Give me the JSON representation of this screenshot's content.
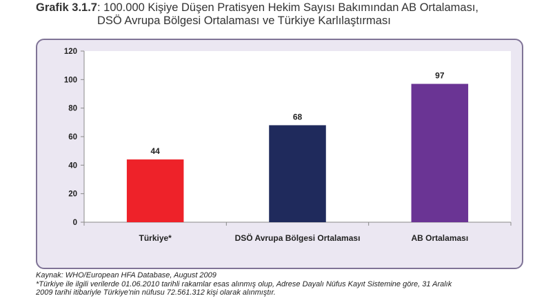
{
  "title": {
    "label": "Grafik 3.1.7",
    "line1": ": 100.000 Kişiye Düşen Pratisyen Hekim Sayısı Bakımından AB Ortalaması,",
    "line2": "DSÖ Avrupa Bölgesi Ortalaması ve Türkiye Karlılaştırması"
  },
  "chart_data": {
    "type": "bar",
    "categories": [
      "Türkiye*",
      "DSÖ Avrupa Bölgesi Ortalaması",
      "AB Ortalaması"
    ],
    "values": [
      44,
      68,
      97
    ],
    "data_labels": [
      "44",
      "68",
      "97"
    ],
    "colors": [
      "#ee2229",
      "#1f2a5c",
      "#6a3494"
    ],
    "ylim": [
      0,
      120
    ],
    "yticks": [
      "0",
      "20",
      "40",
      "60",
      "80",
      "100",
      "120"
    ],
    "grid": false,
    "xlabel": "",
    "ylabel": ""
  },
  "footer": {
    "source": "Kaynak: WHO/European HFA Database, August 2009",
    "note1": "*Türkiye ile ilgili verilerde 01.06.2010 tarihli rakamlar esas alınmış olup, Adrese Dayalı Nüfus Kayıt Sistemine göre,  31 Aralık",
    "note2": "2009 tarihi itibariyle Türkiye'nin nüfusu 72.561.312 kişi olarak alınmıştır."
  }
}
